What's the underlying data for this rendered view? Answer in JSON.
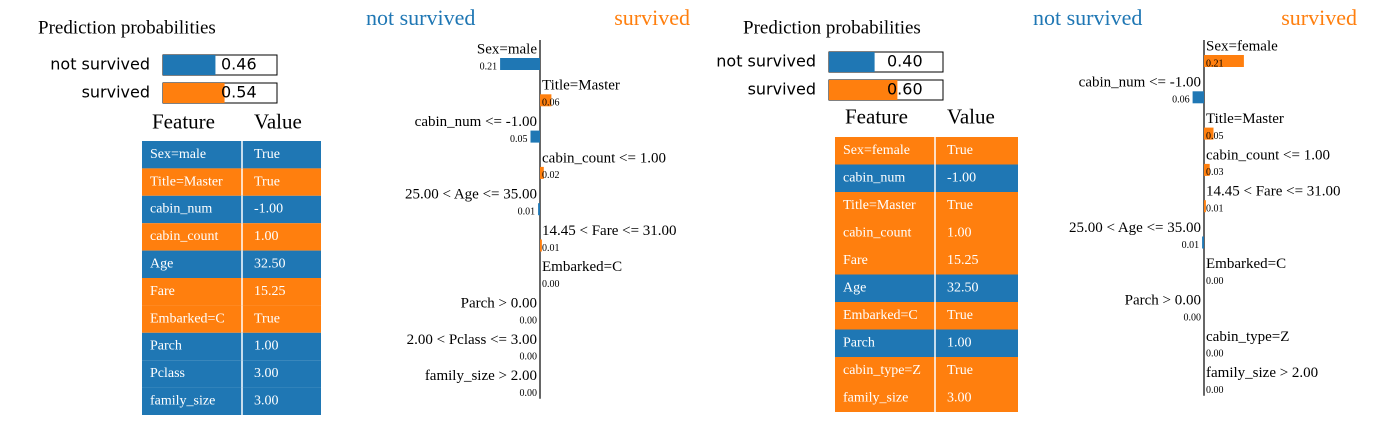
{
  "colors": [
    "#1f77b4",
    "#ff7f0e"
  ],
  "panels": [
    {
      "probabilities": {
        "title": "Prediction probabilities",
        "classes": [
          {
            "name": "not survived",
            "value": 0.46,
            "label": "0.46"
          },
          {
            "name": "survived",
            "value": 0.54,
            "label": "0.54"
          }
        ]
      },
      "explanation": {
        "features": [
          {
            "name": "Sex=male",
            "class": 0,
            "value": 0.21,
            "label": "0.21"
          },
          {
            "name": "Title=Master",
            "class": 1,
            "value": 0.06,
            "label": "0.06"
          },
          {
            "name": "cabin_num <= -1.00",
            "class": 0,
            "value": 0.05,
            "label": "0.05"
          },
          {
            "name": "cabin_count <= 1.00",
            "class": 1,
            "value": 0.02,
            "label": "0.02"
          },
          {
            "name": "25.00 < Age <= 35.00",
            "class": 0,
            "value": 0.01,
            "label": "0.01"
          },
          {
            "name": "14.45 < Fare <= 31.00",
            "class": 1,
            "value": 0.01,
            "label": "0.01"
          },
          {
            "name": "Embarked=C",
            "class": 1,
            "value": 0,
            "label": "0.00"
          },
          {
            "name": "Parch > 0.00",
            "class": 0,
            "value": 0,
            "label": "0.00"
          },
          {
            "name": "2.00 < Pclass <= 3.00",
            "class": 0,
            "value": 0,
            "label": "0.00"
          },
          {
            "name": "family_size > 2.00",
            "class": 0,
            "value": 0,
            "label": "0.00"
          }
        ]
      },
      "table": {
        "columns": [
          "Feature",
          "Value"
        ],
        "rows": [
          {
            "feature": "Sex=male",
            "value": "True",
            "class": 0
          },
          {
            "feature": "Title=Master",
            "value": "True",
            "class": 1
          },
          {
            "feature": "cabin_num",
            "value": "-1.00",
            "class": 0
          },
          {
            "feature": "cabin_count",
            "value": "1.00",
            "class": 1
          },
          {
            "feature": "Age",
            "value": "32.50",
            "class": 0
          },
          {
            "feature": "Fare",
            "value": "15.25",
            "class": 1
          },
          {
            "feature": "Embarked=C",
            "value": "True",
            "class": 1
          },
          {
            "feature": "Parch",
            "value": "1.00",
            "class": 0
          },
          {
            "feature": "Pclass",
            "value": "3.00",
            "class": 0
          },
          {
            "feature": "family_size",
            "value": "3.00",
            "class": 0
          }
        ]
      }
    },
    {
      "probabilities": {
        "title": "Prediction probabilities",
        "classes": [
          {
            "name": "not survived",
            "value": 0.4,
            "label": "0.40"
          },
          {
            "name": "survived",
            "value": 0.6,
            "label": "0.60"
          }
        ]
      },
      "explanation": {
        "features": [
          {
            "name": "Sex=female",
            "class": 1,
            "value": 0.21,
            "label": "0.21"
          },
          {
            "name": "cabin_num <= -1.00",
            "class": 0,
            "value": 0.06,
            "label": "0.06"
          },
          {
            "name": "Title=Master",
            "class": 1,
            "value": 0.05,
            "label": "0.05"
          },
          {
            "name": "cabin_count <= 1.00",
            "class": 1,
            "value": 0.03,
            "label": "0.03"
          },
          {
            "name": "14.45 < Fare <= 31.00",
            "class": 1,
            "value": 0.01,
            "label": "0.01"
          },
          {
            "name": "25.00 < Age <= 35.00",
            "class": 0,
            "value": 0.01,
            "label": "0.01"
          },
          {
            "name": "Embarked=C",
            "class": 1,
            "value": 0,
            "label": "0.00"
          },
          {
            "name": "Parch > 0.00",
            "class": 0,
            "value": 0,
            "label": "0.00"
          },
          {
            "name": "cabin_type=Z",
            "class": 1,
            "value": 0,
            "label": "0.00"
          },
          {
            "name": "family_size > 2.00",
            "class": 1,
            "value": 0,
            "label": "0.00"
          }
        ]
      },
      "table": {
        "columns": [
          "Feature",
          "Value"
        ],
        "rows": [
          {
            "feature": "Sex=female",
            "value": "True",
            "class": 1
          },
          {
            "feature": "cabin_num",
            "value": "-1.00",
            "class": 0
          },
          {
            "feature": "Title=Master",
            "value": "True",
            "class": 1
          },
          {
            "feature": "cabin_count",
            "value": "1.00",
            "class": 1
          },
          {
            "feature": "Fare",
            "value": "15.25",
            "class": 1
          },
          {
            "feature": "Age",
            "value": "32.50",
            "class": 0
          },
          {
            "feature": "Embarked=C",
            "value": "True",
            "class": 1
          },
          {
            "feature": "Parch",
            "value": "1.00",
            "class": 0
          },
          {
            "feature": "cabin_type=Z",
            "value": "True",
            "class": 1
          },
          {
            "feature": "family_size",
            "value": "3.00",
            "class": 1
          }
        ]
      }
    }
  ]
}
